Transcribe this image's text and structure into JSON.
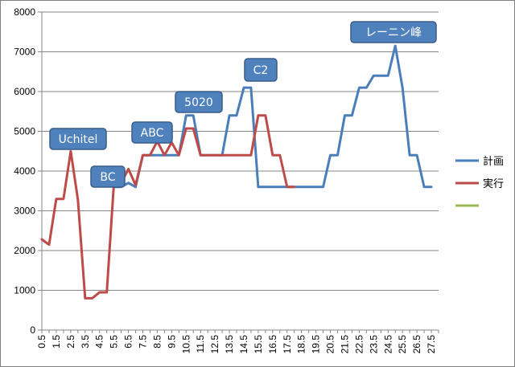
{
  "chart_data": {
    "type": "line",
    "ylim": [
      0,
      8000
    ],
    "y_ticks": [
      0,
      1000,
      2000,
      3000,
      4000,
      5000,
      6000,
      7000,
      8000
    ],
    "x_tick_labels": [
      "0.5",
      "1.5",
      "2.5",
      "3.5",
      "4.5",
      "5.5",
      "6.5",
      "7.5",
      "8.5",
      "9.5",
      "10.5",
      "11.5",
      "12.5",
      "13.5",
      "14.5",
      "15.5",
      "16.5",
      "17.5",
      "18.5",
      "19.5",
      "20.5",
      "21.5",
      "22.5",
      "23.5",
      "24.5",
      "25.5",
      "26.5",
      "27.5"
    ],
    "x_step": 0.5,
    "grid": "horizontal",
    "legend_position": "right",
    "series": [
      {
        "name": "計画",
        "color": "#4a7ebb",
        "points": [
          [
            5.5,
            3600
          ],
          [
            6.0,
            3600
          ],
          [
            6.5,
            3700
          ],
          [
            7.0,
            3600
          ],
          [
            7.5,
            4400
          ],
          [
            8.0,
            4400
          ],
          [
            8.5,
            4400
          ],
          [
            9.0,
            4400
          ],
          [
            9.5,
            4400
          ],
          [
            10.0,
            4400
          ],
          [
            10.5,
            5400
          ],
          [
            11.0,
            5400
          ],
          [
            11.5,
            4400
          ],
          [
            12.0,
            4400
          ],
          [
            12.5,
            4400
          ],
          [
            13.0,
            4400
          ],
          [
            13.5,
            5400
          ],
          [
            14.0,
            5400
          ],
          [
            14.5,
            6100
          ],
          [
            15.0,
            6100
          ],
          [
            15.5,
            3600
          ],
          [
            16.0,
            3600
          ],
          [
            16.5,
            3600
          ],
          [
            17.0,
            3600
          ],
          [
            17.5,
            3600
          ],
          [
            18.0,
            3600
          ],
          [
            18.5,
            3600
          ],
          [
            19.0,
            3600
          ],
          [
            19.5,
            3600
          ],
          [
            20.0,
            3600
          ],
          [
            20.5,
            4400
          ],
          [
            21.0,
            4400
          ],
          [
            21.5,
            5400
          ],
          [
            22.0,
            5400
          ],
          [
            22.5,
            6100
          ],
          [
            23.0,
            6100
          ],
          [
            23.5,
            6400
          ],
          [
            24.0,
            6400
          ],
          [
            24.5,
            6400
          ],
          [
            25.0,
            7150
          ],
          [
            25.5,
            6100
          ],
          [
            26.0,
            4400
          ],
          [
            26.5,
            4400
          ],
          [
            27.0,
            3600
          ],
          [
            27.5,
            3600
          ]
        ]
      },
      {
        "name": "実行",
        "color": "#be4b48",
        "points": [
          [
            0.5,
            2280
          ],
          [
            1.0,
            2150
          ],
          [
            1.5,
            3300
          ],
          [
            2.0,
            3300
          ],
          [
            2.5,
            4500
          ],
          [
            3.0,
            3280
          ],
          [
            3.5,
            800
          ],
          [
            4.0,
            800
          ],
          [
            4.5,
            950
          ],
          [
            5.0,
            950
          ],
          [
            5.5,
            3700
          ],
          [
            6.0,
            3700
          ],
          [
            6.5,
            4050
          ],
          [
            7.0,
            3650
          ],
          [
            7.5,
            4400
          ],
          [
            8.0,
            4400
          ],
          [
            8.5,
            4750
          ],
          [
            9.0,
            4400
          ],
          [
            9.5,
            4720
          ],
          [
            10.0,
            4400
          ],
          [
            10.5,
            5070
          ],
          [
            11.0,
            5070
          ],
          [
            11.5,
            4400
          ],
          [
            12.0,
            4400
          ],
          [
            12.5,
            4400
          ],
          [
            13.0,
            4400
          ],
          [
            13.5,
            4400
          ],
          [
            14.0,
            4400
          ],
          [
            14.5,
            4400
          ],
          [
            15.0,
            4400
          ],
          [
            15.5,
            5400
          ],
          [
            16.0,
            5400
          ],
          [
            16.5,
            4400
          ],
          [
            17.0,
            4400
          ],
          [
            17.5,
            3600
          ],
          [
            18.0,
            3600
          ]
        ]
      },
      {
        "name": "",
        "color": "#98b954",
        "points": []
      }
    ],
    "annotations": [
      {
        "text": "Uchitel"
      },
      {
        "text": "BC"
      },
      {
        "text": "ABC"
      },
      {
        "text": "5020"
      },
      {
        "text": "C2"
      },
      {
        "text": "レーニン峰"
      }
    ]
  }
}
